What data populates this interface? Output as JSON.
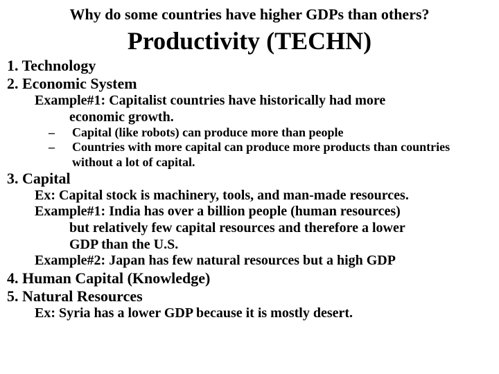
{
  "header": "Why do some countries have higher GDPs than others?",
  "title": "Productivity (TECHN)",
  "p1": "1. Technology",
  "p2": "2. Economic System",
  "p2_ex1_l1": "Example#1: Capitalist countries have historically had more",
  "p2_ex1_l2": "economic growth.",
  "p2_sub1": "Capital (like robots) can produce more than people",
  "p2_sub2": "Countries with more capital can produce more products than countries without a lot of capital.",
  "dash": "–",
  "p3": "3. Capital",
  "p3_ex_l1": "Ex: Capital stock is machinery, tools, and man-made resources.",
  "p3_ex1_l1": "Example#1: India has over a billion people (human resources)",
  "p3_ex1_l2": "but relatively few capital resources and therefore a lower",
  "p3_ex1_l3": "GDP than the U.S.",
  "p3_ex2_l1": "Example#2: Japan has few natural resources but a high GDP",
  "p4": "4. Human Capital (Knowledge)",
  "p5": "5. Natural Resources",
  "p5_ex": "Ex: Syria has a lower GDP because it is mostly desert.",
  "colors": {
    "background": "#ffffff",
    "text": "#000000"
  },
  "fonts": {
    "family": "Times New Roman",
    "header_size": 22,
    "title_size": 36,
    "point_size": 22,
    "example_size": 20,
    "sub_size": 18
  }
}
